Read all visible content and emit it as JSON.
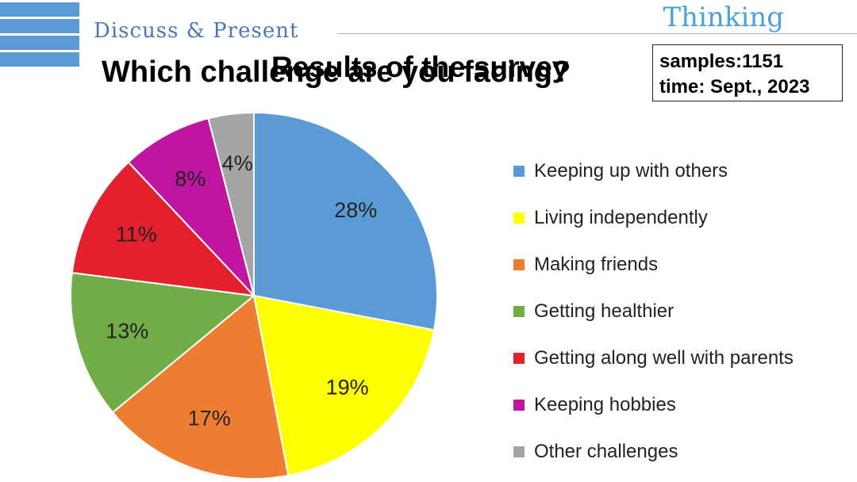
{
  "header": {
    "section_title": "Discuss & Present",
    "brand": "Thinking"
  },
  "titles": {
    "question": "Which challenge are you facing?",
    "results": "Results of the survey"
  },
  "info_box": {
    "samples": "samples:1151",
    "time": "time: Sept., 2023"
  },
  "chart_data": {
    "type": "pie",
    "title": "Results of the survey",
    "start": "12 o'clock, clockwise",
    "legend_position": "right",
    "slices": [
      {
        "name": "Keeping up with others",
        "value": 28,
        "label": "28%",
        "color": "#5b9bd5"
      },
      {
        "name": "Living independently",
        "value": 19,
        "label": "19%",
        "color": "#ffff00"
      },
      {
        "name": "Making friends",
        "value": 17,
        "label": "17%",
        "color": "#ed7d31"
      },
      {
        "name": "Getting healthier",
        "value": 13,
        "label": "13%",
        "color": "#70ad47"
      },
      {
        "name": "Getting along well with parents",
        "value": 11,
        "label": "11%",
        "color": "#e3202e"
      },
      {
        "name": "Keeping hobbies",
        "value": 8,
        "label": "8%",
        "color": "#c0169f"
      },
      {
        "name": "Other challenges",
        "value": 4,
        "label": "4%",
        "color": "#a5a5a5"
      }
    ]
  }
}
